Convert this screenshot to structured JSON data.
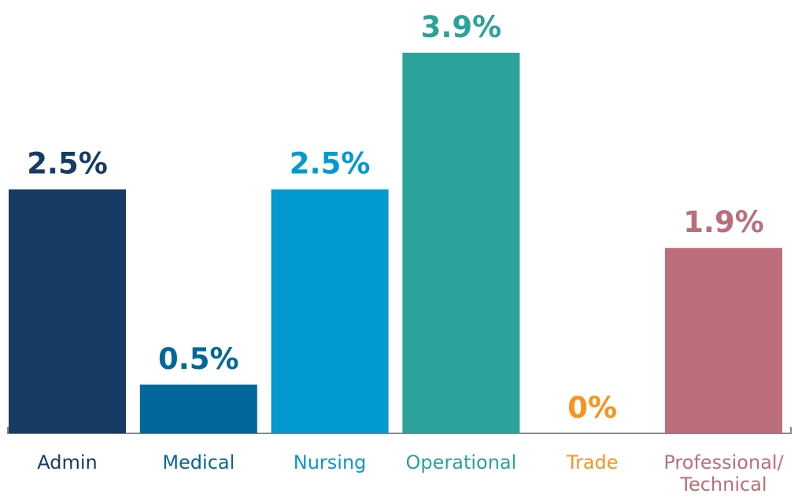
{
  "chart_data": {
    "type": "bar",
    "categories": [
      "Admin",
      "Medical",
      "Nursing",
      "Operational",
      "Trade",
      "Professional/ Technical"
    ],
    "values": [
      2.5,
      0.5,
      2.5,
      3.9,
      0,
      1.9
    ],
    "value_labels": [
      "2.5%",
      "0.5%",
      "2.5%",
      "3.9%",
      "0%",
      "1.9%"
    ],
    "colors": [
      "#173c64",
      "#02679b",
      "#0399d1",
      "#2ba39a",
      "#f7941d",
      "#bb6e7a"
    ]
  }
}
